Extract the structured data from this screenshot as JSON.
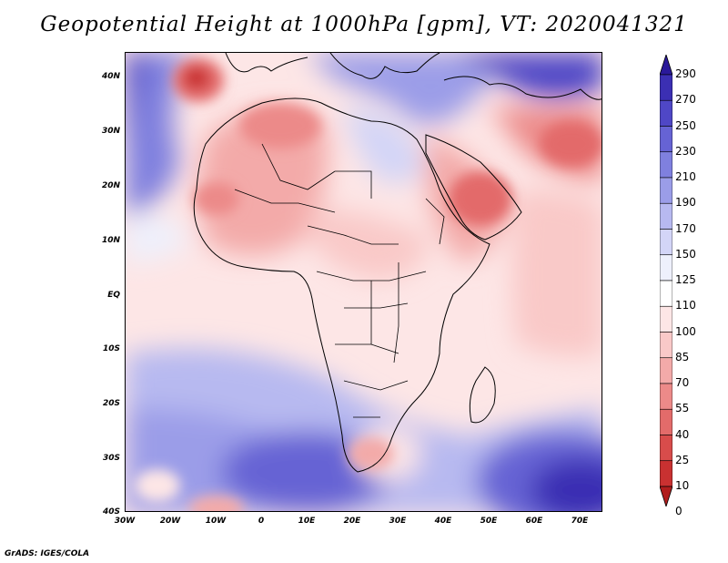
{
  "title": "Geopotential Height at 1000hPa [gpm], VT: 2020041321",
  "footer": "GrADS: IGES/COLA",
  "axes": {
    "lat_labels": [
      "40N",
      "30N",
      "20N",
      "10N",
      "EQ",
      "10S",
      "20S",
      "30S",
      "40S"
    ],
    "lon_labels": [
      "30W",
      "20W",
      "10W",
      "0",
      "10E",
      "20E",
      "30E",
      "40E",
      "50E",
      "60E",
      "70E"
    ]
  },
  "colorbar": {
    "labels": [
      "290",
      "270",
      "250",
      "230",
      "210",
      "190",
      "170",
      "150",
      "125",
      "110",
      "100",
      "85",
      "70",
      "55",
      "40",
      "25",
      "10",
      "0"
    ],
    "colors": [
      "#2a199a",
      "#3b2fb3",
      "#4f47c6",
      "#6663d4",
      "#7f80df",
      "#9b9de8",
      "#b7b9f0",
      "#d3d5f7",
      "#eef0fc",
      "#ffffff",
      "#fde6e6",
      "#f9c9c8",
      "#f3aaa9",
      "#ec8a89",
      "#e36b6a",
      "#d84c4b",
      "#c93131",
      "#b01d1d"
    ]
  },
  "chart_data": {
    "type": "map",
    "variable": "Geopotential Height at 1000hPa",
    "units": "gpm",
    "valid_time": "2020041321",
    "lon_range": [
      -30,
      75
    ],
    "lat_range": [
      -40,
      44
    ],
    "contour_levels": [
      0,
      10,
      25,
      40,
      55,
      70,
      85,
      100,
      110,
      125,
      150,
      170,
      190,
      210,
      230,
      250,
      270,
      290
    ]
  }
}
